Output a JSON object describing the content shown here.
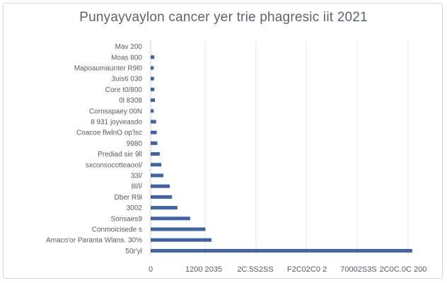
{
  "chart_data": {
    "type": "bar",
    "orientation": "horizontal",
    "title": "Punyayvaylon cancer yer trie phagresic iit 2021",
    "xlabel": "",
    "ylabel": "",
    "grid": true,
    "legend": "none",
    "categories": [
      "Mav 200",
      "Moas 800",
      "Mapoaumaunter R9l0",
      "3uis6 030",
      "Core t0/800",
      "0l 8308",
      "Cornsapaey 00N",
      "8 931 joyveasdo",
      "Coacoe flwlnO op'lsc",
      "9980",
      "Prediad sie 9ll",
      "sxconsocotteaool/",
      "33l/",
      "8l/l/",
      "Dber R9l",
      "3002",
      "Sonsaes9",
      "Conmoicisede s",
      "Amaco'or Paranta Wlans. 30%",
      "50r'yl"
    ],
    "values": [
      0,
      12,
      10,
      11,
      12,
      14,
      10,
      18,
      20,
      22,
      30,
      35,
      42,
      63,
      70,
      88,
      130,
      180,
      200,
      860
    ],
    "xlim": [
      0,
      900
    ],
    "x_tick_labels": [
      "0",
      "1200 2035",
      "2C.5S2SS",
      "F2C02C0 2",
      "70002S3S",
      "2C0C.0C 200"
    ],
    "colors": {
      "bar": "#3f63a6",
      "grid": "#e3e7ec",
      "label": "#555c66",
      "title": "#5a6470"
    }
  }
}
